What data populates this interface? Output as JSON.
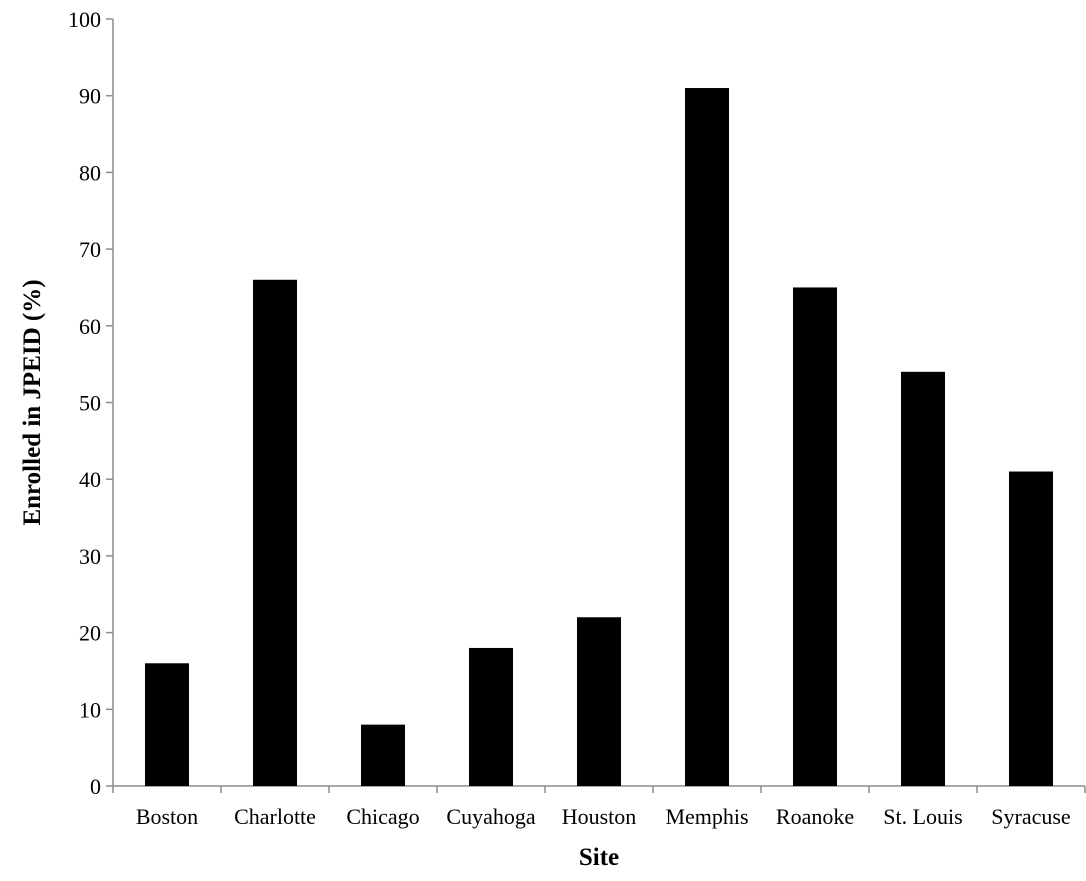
{
  "chart_data": {
    "type": "bar",
    "categories": [
      "Boston",
      "Charlotte",
      "Chicago",
      "Cuyahoga",
      "Houston",
      "Memphis",
      "Roanoke",
      "St. Louis",
      "Syracuse"
    ],
    "values": [
      16,
      66,
      8,
      18,
      22,
      91,
      65,
      54,
      41
    ],
    "xlabel": "Site",
    "ylabel": "Enrolled in JPEID (%)",
    "ylim": [
      0,
      100
    ],
    "yticks": [
      0,
      10,
      20,
      30,
      40,
      50,
      60,
      70,
      80,
      90,
      100
    ],
    "grid": false,
    "legend": "none",
    "bar_color": "#000000"
  }
}
